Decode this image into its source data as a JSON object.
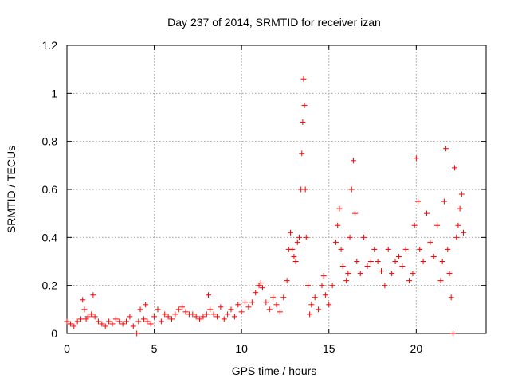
{
  "chart_data": {
    "type": "scatter",
    "title": "Day 237 of 2014, SRMTID for receiver izan",
    "xlabel": "GPS time / hours",
    "ylabel": "SRMTID / TECUs",
    "xlim": [
      0,
      24
    ],
    "ylim": [
      0,
      1.2
    ],
    "x_ticks": [
      0,
      5,
      10,
      15,
      20
    ],
    "y_ticks": [
      0,
      0.2,
      0.4,
      0.6,
      0.8,
      1,
      1.2
    ],
    "x_tick_labels": [
      "0",
      "5",
      "10",
      "15",
      "20"
    ],
    "y_tick_labels": [
      "0",
      "0.2",
      "0.4",
      "0.6",
      "0.8",
      "1",
      "1.2"
    ],
    "grid": true,
    "marker": "+",
    "color": "#ff0000",
    "series": [
      {
        "name": "SRMTID",
        "x": [
          0.0,
          0.2,
          0.4,
          0.6,
          0.8,
          0.9,
          1.0,
          1.1,
          1.2,
          1.4,
          1.5,
          1.6,
          1.8,
          2.0,
          2.2,
          2.4,
          2.6,
          2.8,
          3.0,
          3.2,
          3.4,
          3.6,
          3.8,
          4.0,
          4.1,
          4.2,
          4.4,
          4.5,
          4.6,
          4.8,
          5.0,
          5.2,
          5.4,
          5.6,
          5.8,
          6.0,
          6.2,
          6.4,
          6.6,
          6.8,
          7.0,
          7.2,
          7.4,
          7.6,
          7.8,
          8.0,
          8.1,
          8.2,
          8.4,
          8.6,
          8.8,
          9.0,
          9.2,
          9.4,
          9.6,
          9.8,
          10.0,
          10.2,
          10.4,
          10.6,
          10.8,
          11.0,
          11.1,
          11.2,
          11.4,
          11.6,
          11.8,
          12.0,
          12.2,
          12.4,
          12.6,
          12.7,
          12.8,
          12.9,
          13.0,
          13.1,
          13.2,
          13.3,
          13.4,
          13.45,
          13.5,
          13.55,
          13.6,
          13.65,
          13.7,
          13.8,
          13.9,
          14.0,
          14.2,
          14.4,
          14.6,
          14.7,
          14.8,
          15.0,
          15.2,
          15.4,
          15.5,
          15.6,
          15.7,
          15.8,
          16.0,
          16.1,
          16.2,
          16.3,
          16.4,
          16.5,
          16.6,
          16.8,
          17.0,
          17.2,
          17.4,
          17.6,
          17.8,
          18.0,
          18.2,
          18.4,
          18.6,
          18.8,
          19.0,
          19.2,
          19.4,
          19.6,
          19.8,
          19.9,
          20.0,
          20.1,
          20.2,
          20.4,
          20.6,
          20.8,
          21.0,
          21.2,
          21.4,
          21.5,
          21.6,
          21.7,
          21.8,
          21.9,
          22.0,
          22.1,
          22.2,
          22.3,
          22.4,
          22.5,
          22.6,
          22.7
        ],
        "y": [
          0.05,
          0.04,
          0.03,
          0.05,
          0.06,
          0.14,
          0.1,
          0.06,
          0.07,
          0.08,
          0.16,
          0.07,
          0.05,
          0.04,
          0.03,
          0.05,
          0.04,
          0.06,
          0.05,
          0.04,
          0.05,
          0.07,
          0.03,
          0.0,
          0.05,
          0.1,
          0.06,
          0.12,
          0.05,
          0.04,
          0.07,
          0.1,
          0.05,
          0.08,
          0.07,
          0.06,
          0.08,
          0.1,
          0.11,
          0.09,
          0.08,
          0.08,
          0.07,
          0.06,
          0.07,
          0.08,
          0.16,
          0.1,
          0.08,
          0.07,
          0.11,
          0.06,
          0.08,
          0.1,
          0.07,
          0.12,
          0.09,
          0.13,
          0.11,
          0.13,
          0.17,
          0.2,
          0.21,
          0.19,
          0.13,
          0.1,
          0.15,
          0.12,
          0.09,
          0.15,
          0.22,
          0.35,
          0.42,
          0.35,
          0.32,
          0.3,
          0.38,
          0.4,
          0.6,
          0.75,
          0.88,
          1.06,
          0.95,
          0.6,
          0.4,
          0.2,
          0.08,
          0.12,
          0.15,
          0.1,
          0.2,
          0.24,
          0.16,
          0.12,
          0.2,
          0.38,
          0.45,
          0.52,
          0.35,
          0.28,
          0.22,
          0.25,
          0.4,
          0.6,
          0.72,
          0.5,
          0.3,
          0.25,
          0.4,
          0.28,
          0.3,
          0.35,
          0.3,
          0.26,
          0.2,
          0.35,
          0.25,
          0.3,
          0.32,
          0.28,
          0.35,
          0.22,
          0.25,
          0.45,
          0.73,
          0.55,
          0.35,
          0.3,
          0.5,
          0.38,
          0.32,
          0.45,
          0.22,
          0.3,
          0.55,
          0.77,
          0.35,
          0.25,
          0.15,
          0.0,
          0.69,
          0.4,
          0.45,
          0.52,
          0.58,
          0.42
        ]
      }
    ]
  }
}
